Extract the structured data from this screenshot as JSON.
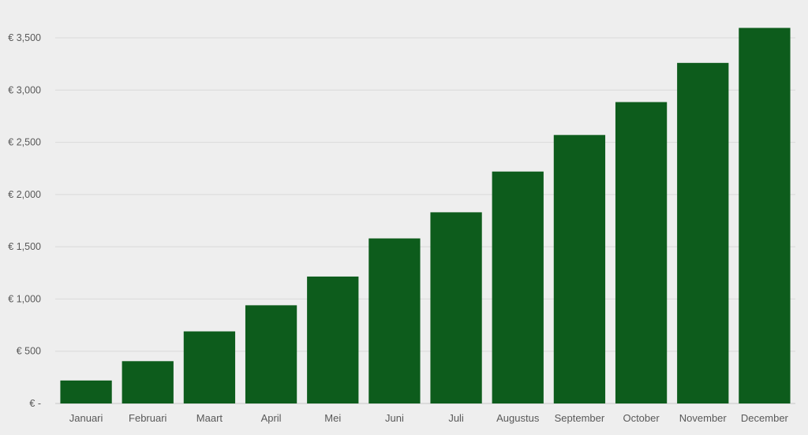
{
  "chart_data": {
    "type": "bar",
    "title": "",
    "xlabel": "",
    "ylabel": "",
    "categories": [
      "Januari",
      "Februari",
      "Maart",
      "April",
      "Mei",
      "Juni",
      "Juli",
      "Augustus",
      "September",
      "October",
      "November",
      "December"
    ],
    "values": [
      220,
      405,
      690,
      940,
      1215,
      1580,
      1830,
      2220,
      2570,
      2885,
      3260,
      3595
    ],
    "ylim": [
      0,
      3500
    ],
    "yticks": [
      0,
      500,
      1000,
      1500,
      2000,
      2500,
      3000,
      3500
    ],
    "ytick_labels": [
      "€ -",
      "€ 500",
      "€ 1,000",
      "€ 1,500",
      "€ 2,000",
      "€ 2,500",
      "€ 3,000",
      "€ 3,500"
    ],
    "grid": true,
    "legend": "none",
    "bar_color": "#0d5c1c",
    "grid_color": "#d9d9d9",
    "text_color": "#595959"
  }
}
